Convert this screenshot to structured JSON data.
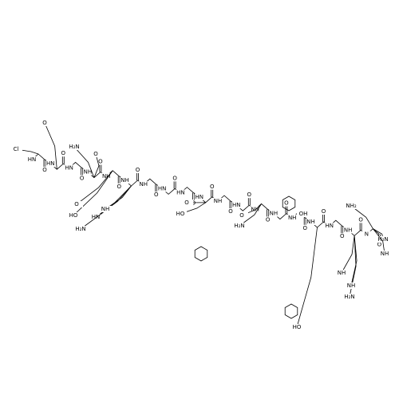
{
  "backbone": {
    "amide_labels": [
      "HN",
      "HN",
      "HN",
      "NH",
      "NH",
      "NH",
      "NH",
      "HN",
      "HN",
      "HN",
      "NH",
      "HN",
      "NH",
      "NH",
      "NH",
      "NH",
      "HN",
      "NH",
      "N"
    ],
    "carbonyl_labels": [
      "O",
      "O",
      "O",
      "O",
      "O",
      "O",
      "O",
      "O",
      "O",
      "O",
      "O",
      "O",
      "O",
      "O",
      "O",
      "O",
      "O",
      "O",
      "O"
    ]
  },
  "side_chains": [
    "Cl",
    "O",
    "H₂N",
    "O",
    "HO",
    "O",
    "HN",
    "H₂N",
    "NH",
    "HO",
    "O",
    "O",
    "H₂N",
    "OH",
    "HO",
    "NH",
    "H₂N",
    "NH",
    "H₂N",
    "NH",
    "NH₂"
  ]
}
